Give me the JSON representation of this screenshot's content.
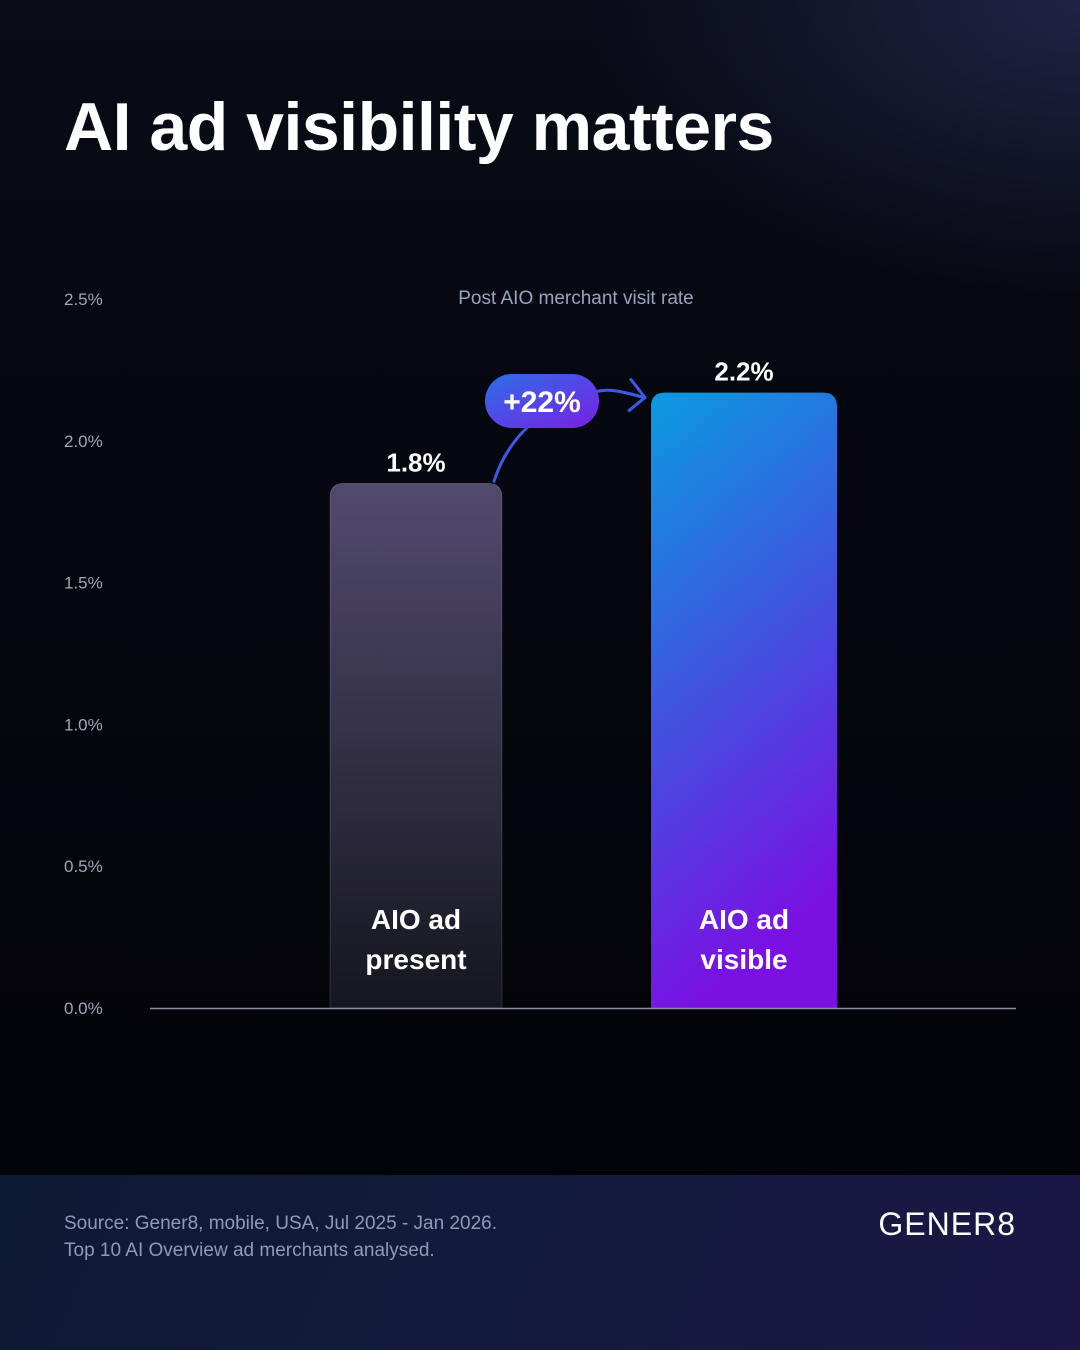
{
  "title": "AI ad visibility matters",
  "chart_data": {
    "type": "bar",
    "title": "Post AIO merchant visit rate",
    "categories": [
      "AIO ad present",
      "AIO ad visible"
    ],
    "category_lines": [
      [
        "AIO ad",
        "present"
      ],
      [
        "AIO ad",
        "visible"
      ]
    ],
    "values": [
      1.85,
      2.17
    ],
    "value_labels": [
      "1.8%",
      "2.2%"
    ],
    "unit": "%",
    "ylim": [
      0,
      2.5
    ],
    "yticks": [
      0.0,
      0.5,
      1.0,
      1.5,
      2.0,
      2.5
    ],
    "ytick_labels": [
      "0.0%",
      "0.5%",
      "1.0%",
      "1.5%",
      "2.0%",
      "2.5%"
    ],
    "grid": false,
    "annotation": {
      "text": "+22%",
      "from": "AIO ad present",
      "to": "AIO ad visible"
    },
    "colors": {
      "present_top": "#524a6e",
      "present_bottom": "#15161f",
      "visible_top": "#0a9be0",
      "visible_mid": "#3f55e0",
      "visible_bottom": "#7a10e2",
      "arrow": "#3d5ae6",
      "badge_start": "#2b6fe8",
      "badge_end": "#7b1fe4",
      "axis": "#8b8fa3",
      "tick_label": "#a0a6bb",
      "chart_title": "#98a3be"
    }
  },
  "footer": {
    "source_line1": "Source: Gener8, mobile, USA, Jul 2025 - Jan 2026.",
    "source_line2": "Top 10 AI Overview ad merchants analysed.",
    "logo": "GENER8"
  }
}
